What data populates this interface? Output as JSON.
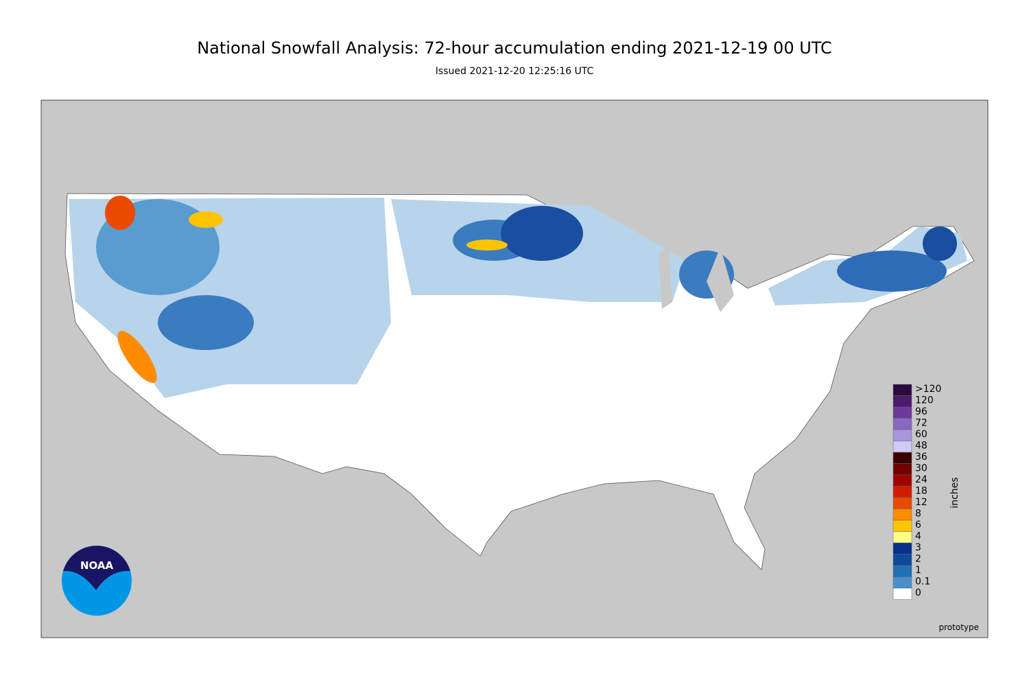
{
  "header": {
    "title": "National Snowfall Analysis: 72-hour accumulation ending 2021-12-19 00 UTC",
    "subtitle": "Issued 2021-12-20 12:25:16 UTC"
  },
  "legend": {
    "unit": "inches",
    "levels": [
      {
        "label": ">120",
        "color": "#2b0a3d"
      },
      {
        "label": "120",
        "color": "#4c1a6b"
      },
      {
        "label": "96",
        "color": "#6b3a98"
      },
      {
        "label": "72",
        "color": "#8a68c0"
      },
      {
        "label": "60",
        "color": "#a896dc"
      },
      {
        "label": "48",
        "color": "#cfcaf7"
      },
      {
        "label": "36",
        "color": "#3a0000"
      },
      {
        "label": "30",
        "color": "#6e0000"
      },
      {
        "label": "24",
        "color": "#a00000"
      },
      {
        "label": "18",
        "color": "#d01c00"
      },
      {
        "label": "12",
        "color": "#ea4a00"
      },
      {
        "label": "8",
        "color": "#ff8c00"
      },
      {
        "label": "6",
        "color": "#ffc400"
      },
      {
        "label": "4",
        "color": "#ffff88"
      },
      {
        "label": "3",
        "color": "#08308c"
      },
      {
        "label": "2",
        "color": "#0d4a9c"
      },
      {
        "label": "1",
        "color": "#2070b4"
      },
      {
        "label": "0.1",
        "color": "#4a90cc"
      },
      {
        "label": "0",
        "color": "#ffffff"
      }
    ]
  },
  "logo": {
    "text": "NOAA"
  },
  "footer": {
    "note": "prototype"
  }
}
